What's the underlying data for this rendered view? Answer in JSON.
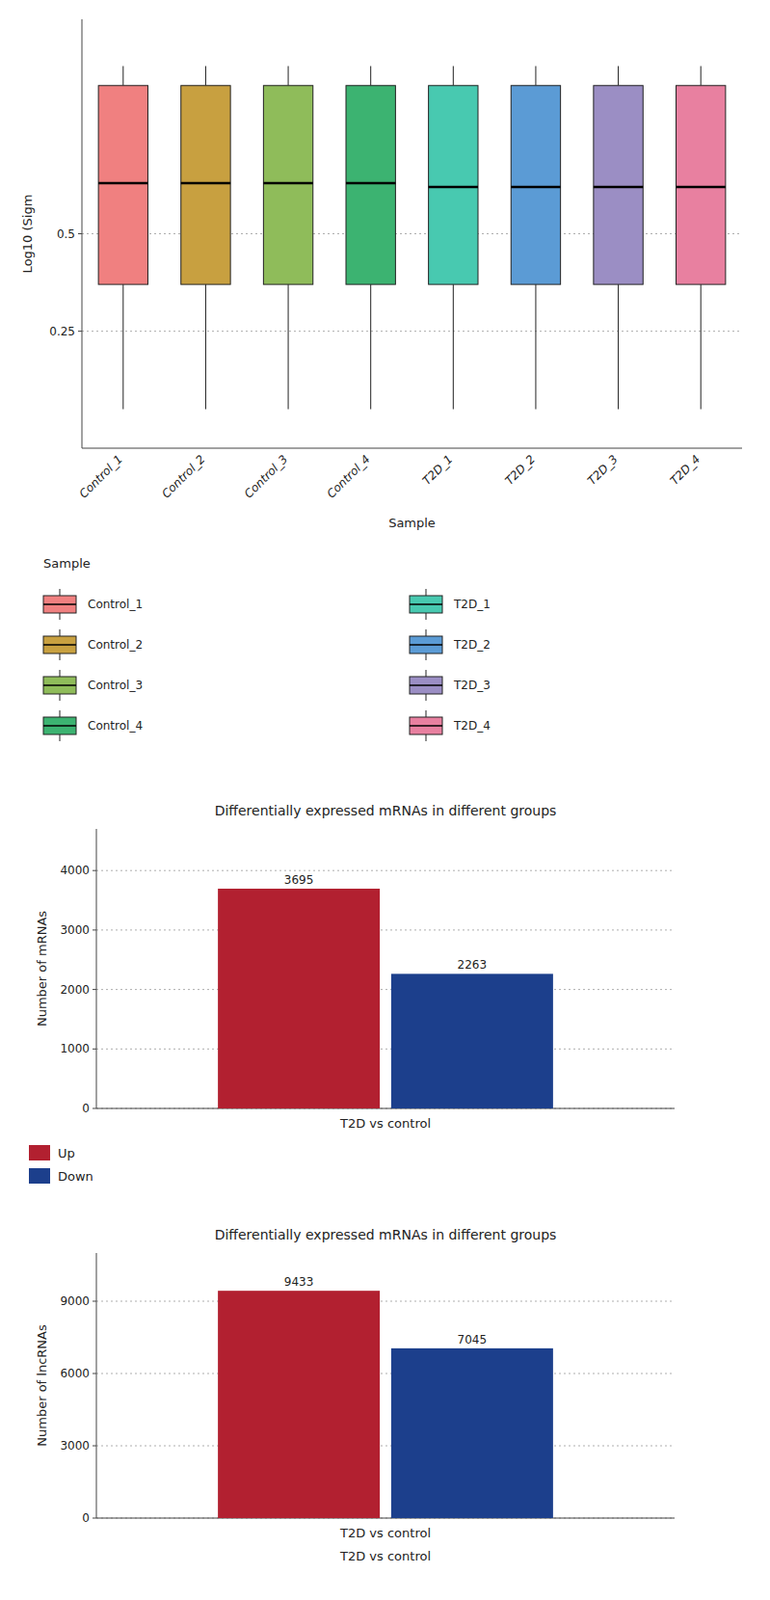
{
  "chart_data": [
    {
      "type": "box",
      "xlabel": "Sample",
      "ylabel": "Log10 (Sigm",
      "categories": [
        "Control_1",
        "Control_2",
        "Control_3",
        "Control_4",
        "T2D_1",
        "T2D_2",
        "T2D_3",
        "T2D_4"
      ],
      "q1": [
        0.37,
        0.37,
        0.37,
        0.37,
        0.37,
        0.37,
        0.37,
        0.37
      ],
      "median": [
        0.63,
        0.63,
        0.63,
        0.63,
        0.62,
        0.62,
        0.62,
        0.62
      ],
      "q3": [
        0.88,
        0.88,
        0.88,
        0.88,
        0.88,
        0.88,
        0.88,
        0.88
      ],
      "whislo": [
        0.05,
        0.05,
        0.05,
        0.05,
        0.05,
        0.05,
        0.05,
        0.05
      ],
      "whishi": [
        0.93,
        0.93,
        0.93,
        0.93,
        0.93,
        0.93,
        0.93,
        0.93
      ],
      "colors": [
        "#F08080",
        "#C8A040",
        "#8FBC5A",
        "#3CB371",
        "#48C9B0",
        "#5B9BD5",
        "#9B8EC4",
        "#E880A0"
      ],
      "ylim": [
        -0.05,
        1.05
      ],
      "yticks": [
        0.25,
        0.5
      ],
      "grid": true,
      "legend": "bottom",
      "legend_title": "Sample"
    },
    {
      "type": "bar",
      "title": "Differentially expressed mRNAs in different groups",
      "ylabel": "Number of mRNAs",
      "categories": [
        "T2D vs control"
      ],
      "series": [
        {
          "name": "Up",
          "color": "#B22030",
          "values": [
            3695
          ]
        },
        {
          "name": "Down",
          "color": "#1C3F8C",
          "values": [
            2263
          ]
        }
      ],
      "ylim": [
        0,
        4700
      ],
      "yticks": [
        0,
        1000,
        2000,
        3000,
        4000
      ],
      "grid": true,
      "data_labels": true,
      "legend": "bottom"
    },
    {
      "type": "bar",
      "title": "Differentially expressed mRNAs in different groups",
      "xlabel": "T2D vs control",
      "ylabel": "Number of lncRNAs",
      "categories": [
        "T2D vs control"
      ],
      "series": [
        {
          "color": "#B22030",
          "values": [
            9433
          ]
        },
        {
          "color": "#1C3F8C",
          "values": [
            7045
          ]
        }
      ],
      "ylim": [
        0,
        11000
      ],
      "yticks": [
        0,
        3000,
        6000,
        9000
      ],
      "grid": true,
      "data_labels": true
    }
  ]
}
